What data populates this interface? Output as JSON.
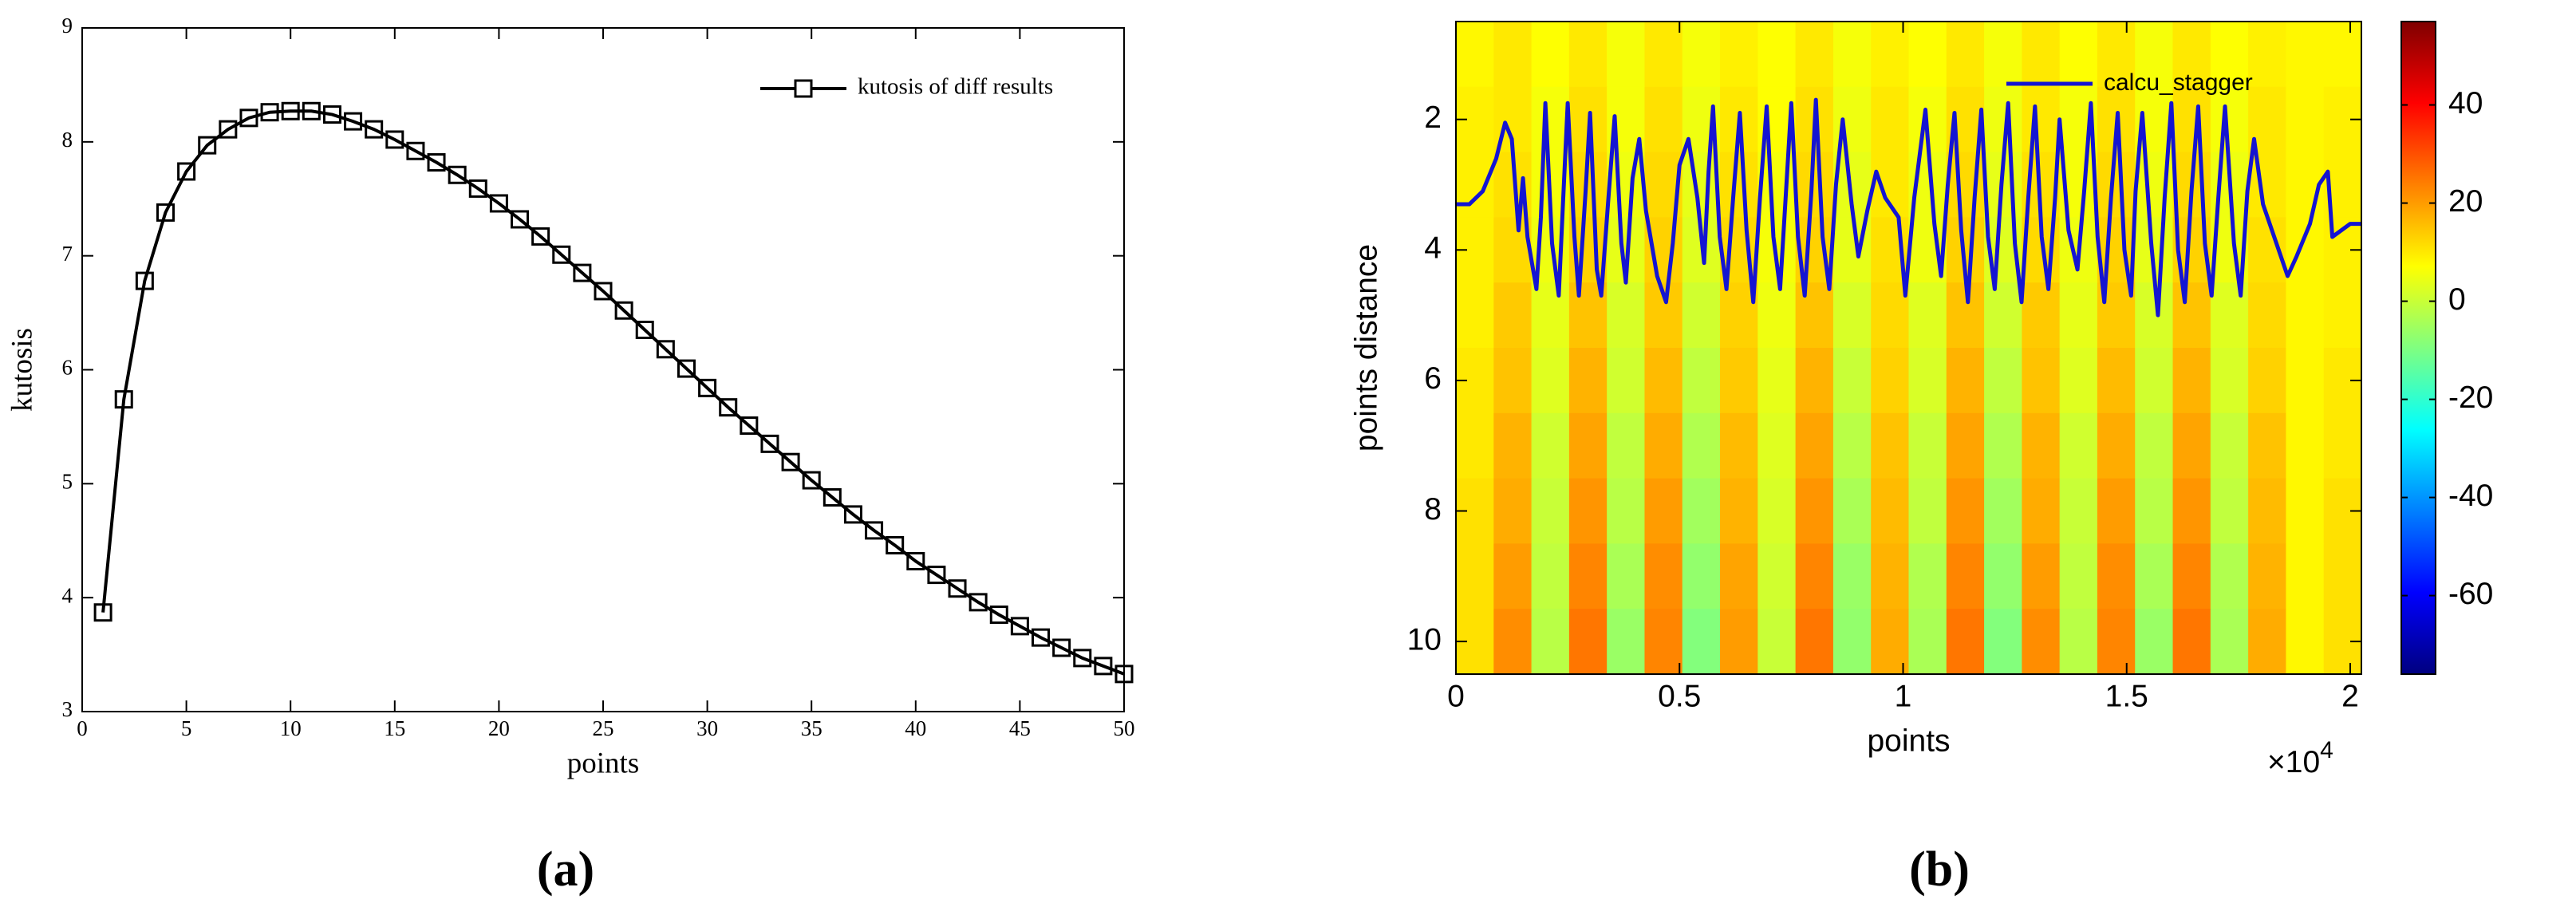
{
  "chart_data": [
    {
      "type": "line",
      "label": "(a)",
      "xlabel": "points",
      "ylabel": "kutosis",
      "xlim": [
        0,
        50
      ],
      "xticks": [
        0,
        5,
        10,
        15,
        20,
        25,
        30,
        35,
        40,
        45,
        50
      ],
      "ylim": [
        3,
        9
      ],
      "yticks": [
        3,
        4,
        5,
        6,
        7,
        8,
        9
      ],
      "legend": "upper right",
      "series": [
        {
          "name": "kutosis of diff results",
          "color": "#000000",
          "marker": "square",
          "x": [
            1,
            2,
            3,
            4,
            5,
            6,
            7,
            8,
            9,
            10,
            11,
            12,
            13,
            14,
            15,
            16,
            17,
            18,
            19,
            20,
            21,
            22,
            23,
            24,
            25,
            26,
            27,
            28,
            29,
            30,
            31,
            32,
            33,
            34,
            35,
            36,
            37,
            38,
            39,
            40,
            41,
            42,
            43,
            44,
            45,
            46,
            47,
            48,
            49,
            50
          ],
          "values": [
            3.87,
            5.74,
            6.78,
            7.38,
            7.74,
            7.97,
            8.11,
            8.21,
            8.26,
            8.27,
            8.27,
            8.24,
            8.18,
            8.11,
            8.02,
            7.92,
            7.82,
            7.71,
            7.59,
            7.46,
            7.32,
            7.17,
            7.01,
            6.85,
            6.69,
            6.52,
            6.35,
            6.18,
            6.01,
            5.84,
            5.67,
            5.51,
            5.35,
            5.19,
            5.03,
            4.88,
            4.73,
            4.59,
            4.46,
            4.32,
            4.2,
            4.08,
            3.96,
            3.85,
            3.75,
            3.65,
            3.56,
            3.47,
            3.4,
            3.33
          ]
        }
      ]
    },
    {
      "type": "heatmap",
      "label": "(b)",
      "xlabel": "points",
      "ylabel": "points distance",
      "x_multiplier": {
        "base": "×10",
        "exponent": "4"
      },
      "xlim": [
        0,
        20250
      ],
      "xticks": [
        0,
        {
          "value": 5000,
          "label": "0.5"
        },
        {
          "value": 10000,
          "label": "1"
        },
        {
          "value": 15000,
          "label": "1.5"
        },
        {
          "value": 20000,
          "label": "2"
        }
      ],
      "ylim": [
        10.5,
        0.5
      ],
      "yticks": [
        2,
        4,
        6,
        8,
        10
      ],
      "colormap": "jet",
      "clim": [
        -76,
        57
      ],
      "cticks": [
        -60,
        -40,
        -20,
        0,
        20,
        40
      ],
      "x_edges": [
        0,
        843.75,
        1687.5,
        2531.25,
        3375,
        4218.75,
        5062.5,
        5906.25,
        6750,
        7593.75,
        8437.5,
        9281.25,
        10125,
        10968.75,
        11812.5,
        12656.25,
        13500,
        14343.75,
        15187.5,
        16031.25,
        16875,
        17718.75,
        18562.5,
        19406.25,
        20250
      ],
      "y_edges": [
        0.5,
        1.5,
        2.5,
        3.5,
        4.5,
        5.5,
        6.5,
        7.5,
        8.5,
        9.5,
        10.5
      ],
      "z": [
        [
          8,
          10,
          7,
          10,
          6,
          10,
          6,
          9,
          7,
          10,
          6,
          9,
          7,
          10,
          6,
          10,
          7,
          10,
          6,
          10,
          7,
          9,
          8,
          8
        ],
        [
          9,
          10,
          6,
          11,
          6,
          11,
          5,
          10,
          7,
          11,
          5,
          10,
          6,
          11,
          5,
          10,
          6,
          11,
          6,
          11,
          6,
          10,
          8,
          9
        ],
        [
          9,
          11,
          6,
          12,
          5,
          12,
          4,
          11,
          6,
          12,
          4,
          10,
          5,
          12,
          4,
          11,
          6,
          12,
          5,
          12,
          5,
          10,
          8,
          9
        ],
        [
          9,
          12,
          5,
          13,
          4,
          13,
          3,
          12,
          6,
          13,
          4,
          11,
          5,
          13,
          3,
          12,
          5,
          13,
          4,
          13,
          5,
          11,
          8,
          9
        ],
        [
          9,
          14,
          4,
          15,
          2,
          14,
          1,
          13,
          5,
          15,
          2,
          12,
          3,
          15,
          1,
          14,
          4,
          14,
          2,
          15,
          3,
          12,
          8,
          9
        ],
        [
          10,
          15,
          3,
          17,
          1,
          16,
          -1,
          14,
          4,
          17,
          0,
          13,
          2,
          17,
          -1,
          15,
          3,
          16,
          1,
          17,
          2,
          13,
          8,
          10
        ],
        [
          10,
          17,
          1,
          19,
          -1,
          18,
          -3,
          16,
          3,
          19,
          -2,
          15,
          0,
          19,
          -3,
          17,
          1,
          18,
          -1,
          19,
          0,
          15,
          8,
          10
        ],
        [
          11,
          18,
          0,
          21,
          -2,
          20,
          -5,
          17,
          2,
          21,
          -4,
          16,
          -1,
          21,
          -5,
          18,
          0,
          20,
          -2,
          21,
          -1,
          16,
          8,
          11
        ],
        [
          11,
          20,
          -1,
          23,
          -4,
          22,
          -7,
          19,
          1,
          23,
          -6,
          17,
          -3,
          23,
          -7,
          20,
          -1,
          22,
          -4,
          23,
          -3,
          17,
          8,
          11
        ],
        [
          11,
          22,
          -2,
          25,
          -6,
          23,
          -9,
          20,
          0,
          25,
          -7,
          18,
          -4,
          25,
          -9,
          22,
          -2,
          23,
          -6,
          25,
          -4,
          18,
          8,
          11
        ]
      ],
      "legend": "upper right",
      "series": [
        {
          "name": "calcu_stagger",
          "color": "#1414d2",
          "x": [
            0,
            300,
            600,
            900,
            1100,
            1250,
            1400,
            1500,
            1600,
            1800,
            1900,
            2000,
            2150,
            2300,
            2400,
            2500,
            2650,
            2750,
            2900,
            3000,
            3150,
            3250,
            3400,
            3550,
            3700,
            3800,
            3950,
            4100,
            4250,
            4500,
            4700,
            4850,
            5000,
            5200,
            5400,
            5550,
            5650,
            5750,
            5900,
            6050,
            6200,
            6350,
            6500,
            6650,
            6800,
            6950,
            7100,
            7250,
            7400,
            7500,
            7650,
            7800,
            7950,
            8050,
            8200,
            8350,
            8500,
            8650,
            8850,
            9000,
            9200,
            9400,
            9600,
            9900,
            10050,
            10250,
            10500,
            10700,
            10850,
            11000,
            11150,
            11300,
            11450,
            11600,
            11750,
            11900,
            12050,
            12200,
            12350,
            12500,
            12650,
            12800,
            12950,
            13100,
            13250,
            13400,
            13500,
            13700,
            13900,
            14050,
            14200,
            14350,
            14500,
            14650,
            14800,
            14950,
            15100,
            15200,
            15350,
            15550,
            15700,
            15850,
            16000,
            16150,
            16300,
            16450,
            16600,
            16750,
            16900,
            17050,
            17200,
            17400,
            17550,
            17700,
            17850,
            18050,
            18400,
            18600,
            18800,
            19100,
            19300,
            19500,
            19600,
            20000,
            20250
          ],
          "values": [
            3.3,
            3.3,
            3.1,
            2.6,
            2.05,
            2.3,
            3.7,
            2.9,
            3.8,
            4.6,
            3.5,
            1.75,
            3.9,
            4.7,
            3.2,
            1.75,
            3.8,
            4.7,
            3.1,
            1.9,
            4.3,
            4.7,
            3.3,
            1.95,
            3.9,
            4.5,
            2.9,
            2.3,
            3.4,
            4.4,
            4.8,
            3.9,
            2.7,
            2.3,
            3.2,
            4.2,
            2.8,
            1.8,
            3.8,
            4.6,
            3.2,
            1.9,
            3.7,
            4.8,
            3.2,
            1.8,
            3.8,
            4.6,
            2.9,
            1.75,
            3.8,
            4.7,
            3.1,
            1.7,
            3.8,
            4.6,
            3.0,
            2.0,
            3.3,
            4.1,
            3.4,
            2.8,
            3.2,
            3.5,
            4.7,
            3.2,
            1.85,
            3.6,
            4.4,
            3.0,
            1.9,
            3.7,
            4.8,
            3.2,
            1.85,
            3.8,
            4.6,
            3.0,
            1.75,
            3.9,
            4.8,
            3.2,
            1.8,
            3.8,
            4.6,
            3.2,
            2.0,
            3.7,
            4.3,
            3.1,
            1.75,
            3.8,
            4.8,
            3.2,
            1.9,
            4.0,
            4.7,
            3.1,
            1.9,
            3.9,
            5.0,
            3.2,
            1.75,
            4.0,
            4.8,
            3.1,
            1.8,
            3.9,
            4.7,
            3.2,
            1.8,
            3.9,
            4.7,
            3.1,
            2.3,
            3.3,
            4.0,
            4.4,
            4.1,
            3.6,
            3.0,
            2.8,
            3.8,
            3.6,
            3.6
          ]
        }
      ]
    }
  ]
}
